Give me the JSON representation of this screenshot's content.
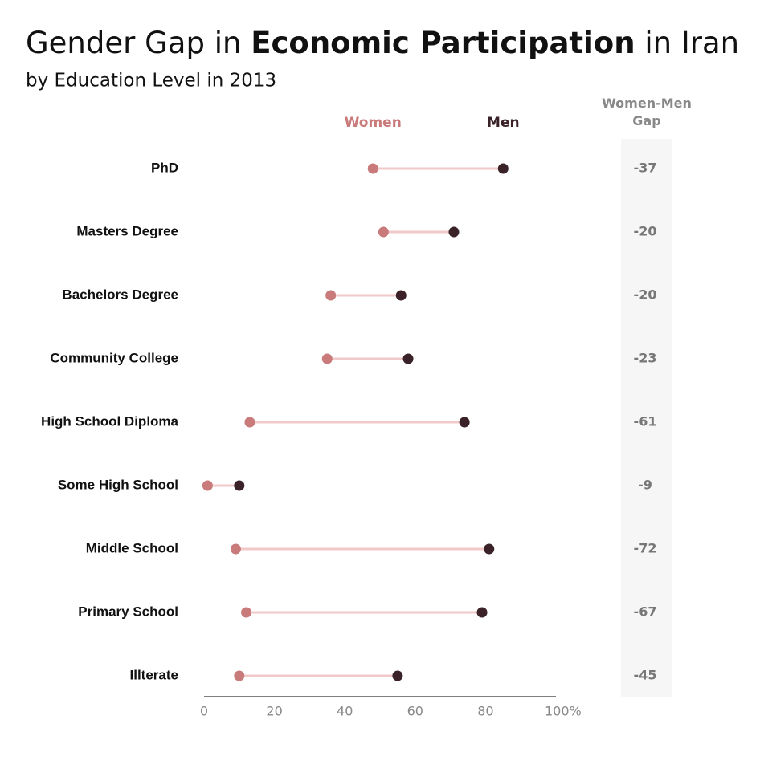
{
  "chart_data": {
    "type": "dumbbell",
    "title": [
      "Gender Gap in ",
      "Economic Participation",
      " in Iran"
    ],
    "subtitle": "by Education Level in 2013",
    "categories": [
      "PhD",
      "Masters Degree",
      "Bachelors Degree",
      "Community College",
      "High School Diploma",
      "Some High School",
      "Middle School",
      "Primary School",
      "Illterate"
    ],
    "series": [
      {
        "name": "Women",
        "color": "#c97a7a",
        "values": [
          48,
          51,
          36,
          35,
          13,
          1,
          9,
          12,
          10
        ]
      },
      {
        "name": "Men",
        "color": "#3a2228",
        "values": [
          85,
          71,
          56,
          58,
          74,
          10,
          81,
          79,
          55
        ]
      }
    ],
    "connector_color": "#f2c9c9",
    "gap": {
      "title": "Women-Men Gap",
      "values": [
        -37,
        -20,
        -20,
        -23,
        -61,
        -9,
        -72,
        -67,
        -45
      ]
    },
    "xlim": [
      0,
      100
    ],
    "xticks": [
      0,
      20,
      40,
      60,
      80,
      {
        "value": 100,
        "label": "100%"
      }
    ]
  }
}
